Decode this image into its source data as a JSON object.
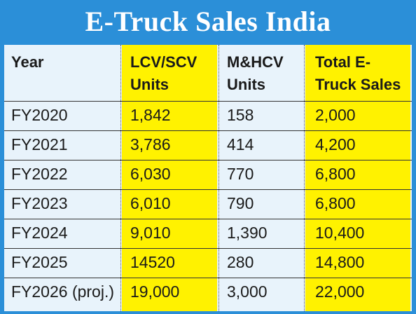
{
  "title": "E-Truck Sales India",
  "colors": {
    "frame": "#2b8fd8",
    "table_background": "#e8f3fb",
    "highlight": "#fff200",
    "text": "#1a1a1a"
  },
  "chart_data": {
    "type": "table",
    "title": "E-Truck Sales India",
    "columns": [
      {
        "line1": "Year",
        "line2": ""
      },
      {
        "line1": "LCV/SCV",
        "line2": "Units"
      },
      {
        "line1": "M&HCV",
        "line2": "Units"
      },
      {
        "line1": "Total E-",
        "line2": "Truck Sales"
      }
    ],
    "highlighted_columns": [
      1,
      3
    ],
    "rows": [
      {
        "year": "FY2020",
        "lcv_scv": "1,842",
        "mhcv": "158",
        "total": "2,000"
      },
      {
        "year": "FY2021",
        "lcv_scv": "3,786",
        "mhcv": "414",
        "total": "4,200"
      },
      {
        "year": "FY2022",
        "lcv_scv": "6,030",
        "mhcv": "770",
        "total": "6,800"
      },
      {
        "year": "FY2023",
        "lcv_scv": "6,010",
        "mhcv": "790",
        "total": "6,800"
      },
      {
        "year": "FY2024",
        "lcv_scv": "9,010",
        "mhcv": "1,390",
        "total": "10,400"
      },
      {
        "year": "FY2025",
        "lcv_scv": "14520",
        "mhcv": "280",
        "total": "14,800"
      },
      {
        "year": "FY2026 (proj.)",
        "lcv_scv": "19,000",
        "mhcv": "3,000",
        "total": "22,000"
      }
    ]
  }
}
